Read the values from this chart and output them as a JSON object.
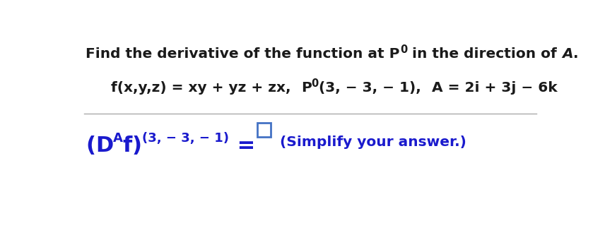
{
  "background_color": "#ffffff",
  "title_text1": "Find the derivative of the function at P",
  "title_sub0": "0",
  "title_text2": " in the direction of ",
  "title_boldA": "A",
  "title_dot": ".",
  "func_text": "f(x,y,z) = xy + yz + zx,",
  "p0_text": "P",
  "p0_sub": "0",
  "p0_coords": "(3, − 3, − 1),",
  "a_text": "A = 2i + 3j − 6k",
  "ans_open": "(",
  "ans_D": "D",
  "ans_Asub": "A",
  "ans_f": "f",
  "ans_close": ")",
  "ans_sub": "(3, − 3, − 1)",
  "ans_eq": " = ",
  "ans_simplify": "(Simplify your answer.)",
  "blue_color": "#1a1acd",
  "black_color": "#1a1a1a",
  "box_edge_color": "#4472c4",
  "sep_color": "#aaaaaa",
  "title_fontsize": 14.5,
  "func_fontsize": 14.5,
  "ans_big_fontsize": 22,
  "ans_sub_fontsize": 13,
  "ans_small_fontsize": 13,
  "simplify_fontsize": 14.5
}
